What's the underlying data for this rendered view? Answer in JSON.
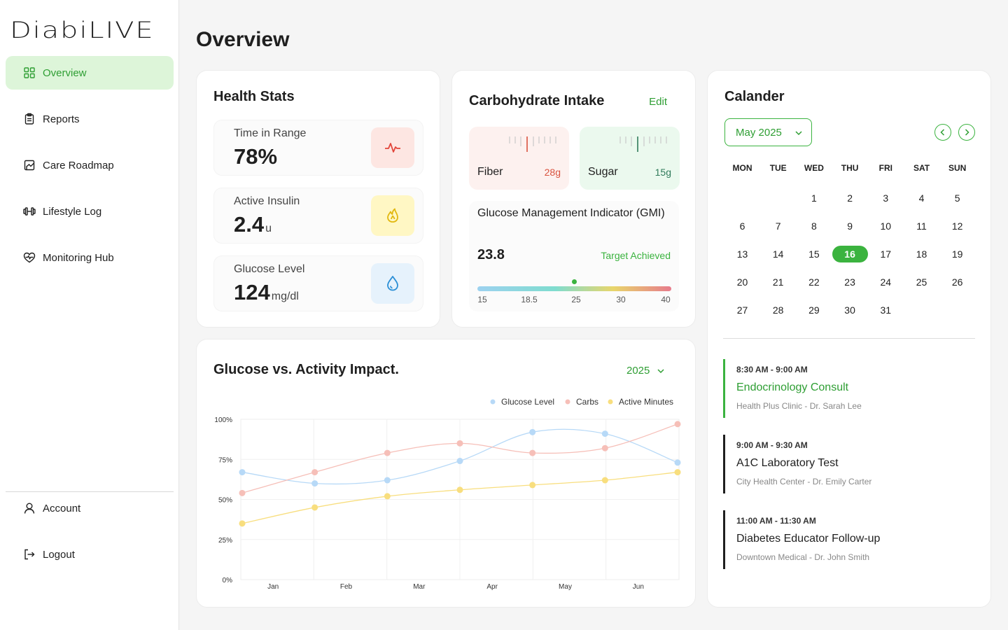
{
  "app": {
    "logo": "DiabiLIVE"
  },
  "sidebar": {
    "items": [
      {
        "label": "Overview",
        "icon": "grid-icon"
      },
      {
        "label": "Reports",
        "icon": "clipboard-icon"
      },
      {
        "label": "Care Roadmap",
        "icon": "roadmap-icon"
      },
      {
        "label": "Lifestyle Log",
        "icon": "dumbbell-icon"
      },
      {
        "label": "Monitoring Hub",
        "icon": "heart-pulse-icon"
      }
    ],
    "bottom": [
      {
        "label": "Account",
        "icon": "user-icon"
      },
      {
        "label": "Logout",
        "icon": "logout-icon"
      }
    ]
  },
  "page": {
    "title": "Overview"
  },
  "health_stats": {
    "title": "Health Stats",
    "time_in_range": {
      "label": "Time in Range",
      "value": "78%",
      "unit": ""
    },
    "active_insulin": {
      "label": "Active Insulin",
      "value": "2.4",
      "unit": "u"
    },
    "glucose_level": {
      "label": "Glucose Level",
      "value": "124",
      "unit": "mg/dl"
    }
  },
  "carb": {
    "title": "Carbohydrate Intake",
    "edit": "Edit",
    "fiber": {
      "label": "Fiber",
      "amount": "28g"
    },
    "sugar": {
      "label": "Sugar",
      "amount": "15g"
    },
    "gmi": {
      "title": "Glucose Management Indicator (GMI)",
      "value": "23.8",
      "status": "Target Achieved",
      "ticks": [
        "15",
        "18.5",
        "25",
        "30",
        "40"
      ]
    }
  },
  "calendar": {
    "title": "Calander",
    "month": "May 2025",
    "weekdays": [
      "MON",
      "TUE",
      "WED",
      "THU",
      "FRI",
      "SAT",
      "SUN"
    ],
    "first_weekday_index": 2,
    "days_in_month": 31,
    "today": 16,
    "events": [
      {
        "time": "8:30 AM - 9:00 AM",
        "title": "Endocrinology Consult",
        "place": "Health Plus Clinic - Dr. Sarah Lee"
      },
      {
        "time": "9:00 AM - 9:30 AM",
        "title": "A1C Laboratory Test",
        "place": "City Health Center - Dr. Emily Carter"
      },
      {
        "time": "11:00 AM - 11:30 AM",
        "title": "Diabetes Educator Follow-up",
        "place": "Downtown Medical - Dr. John Smith"
      }
    ]
  },
  "glucose_chart": {
    "title": "Glucose vs. Activity Impact.",
    "year": "2025"
  },
  "colors": {
    "accent": "#3bb33f",
    "glucose": "#b7d9f7",
    "carbs": "#f6bfb8",
    "active": "#f8de7e"
  },
  "chart_data": {
    "type": "line",
    "title": "Glucose vs. Activity Impact.",
    "categories": [
      "Jan",
      "Feb",
      "Mar",
      "Apr",
      "May",
      "Jun"
    ],
    "x": [
      0,
      1,
      2,
      3,
      4,
      5,
      6
    ],
    "yticks": [
      "0%",
      "25%",
      "50%",
      "75%",
      "100%"
    ],
    "ylim": [
      0,
      100
    ],
    "legend": "top-right",
    "series": [
      {
        "name": "Glucose Level",
        "values": [
          67,
          60,
          62,
          74,
          92,
          91,
          73
        ],
        "color": "#b7d9f7"
      },
      {
        "name": "Carbs",
        "values": [
          54,
          67,
          79,
          85,
          79,
          82,
          97
        ],
        "color": "#f6bfb8"
      },
      {
        "name": "Active Minutes",
        "values": [
          35,
          45,
          52,
          56,
          59,
          62,
          67
        ],
        "color": "#f8de7e"
      }
    ]
  }
}
